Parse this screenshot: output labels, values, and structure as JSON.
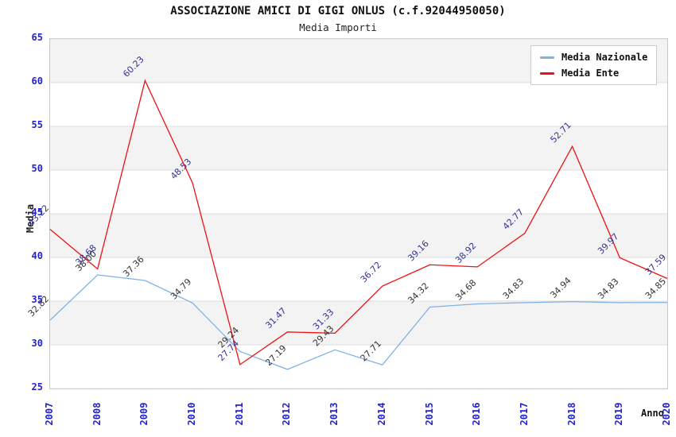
{
  "header": {
    "title": "ASSOCIAZIONE AMICI DI GIGI ONLUS (c.f.92044950050)",
    "subtitle": "Media Importi"
  },
  "axes": {
    "y_title": "Media",
    "x_title": "Anno",
    "y_ticks": [
      65,
      60,
      55,
      50,
      45,
      40,
      35,
      30,
      25
    ],
    "x_ticks": [
      "2007",
      "2008",
      "2009",
      "2010",
      "2011",
      "2012",
      "2013",
      "2014",
      "2015",
      "2016",
      "2017",
      "2018",
      "2019",
      "2020"
    ]
  },
  "legend": {
    "items": [
      {
        "label": "Media Nazionale",
        "color": "#7fb2e5"
      },
      {
        "label": "Media Ente",
        "color": "#ee1111"
      }
    ]
  },
  "colors": {
    "tick_label": "#2323cc",
    "band_gray": "#f3f3f3",
    "gridline": "#dcdcdc",
    "national_line": "#7fb2e5",
    "ente_line": "#ee1111",
    "national_value_label": "#333333",
    "ente_value_label": "#333399"
  },
  "chart_data": {
    "type": "line",
    "title": "ASSOCIAZIONE AMICI DI GIGI ONLUS (c.f.92044950050)",
    "subtitle": "Media Importi",
    "xlabel": "Anno",
    "ylabel": "Media",
    "ylim": [
      25,
      65
    ],
    "ytick_step": 5,
    "grid": true,
    "legend_position": "top-right",
    "x": [
      2007,
      2008,
      2009,
      2010,
      2011,
      2012,
      2013,
      2014,
      2015,
      2016,
      2017,
      2018,
      2019,
      2020
    ],
    "series": [
      {
        "name": "Media Nazionale",
        "color": "#7fb2e5",
        "label_color": "#333333",
        "values": [
          32.82,
          38.0,
          37.36,
          34.79,
          29.24,
          27.19,
          29.43,
          27.71,
          34.32,
          34.68,
          34.83,
          34.94,
          34.83,
          34.85
        ]
      },
      {
        "name": "Media Ente",
        "color": "#ee1111",
        "label_color": "#333399",
        "values": [
          43.22,
          38.68,
          60.23,
          48.53,
          27.74,
          31.47,
          31.33,
          36.72,
          39.16,
          38.92,
          42.77,
          52.71,
          39.97,
          37.59
        ]
      }
    ]
  }
}
